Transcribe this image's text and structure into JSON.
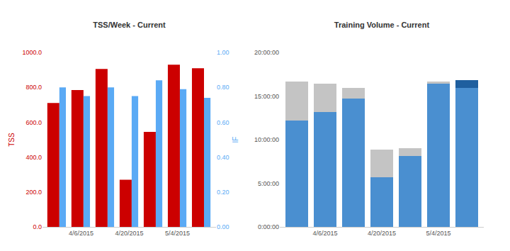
{
  "chart_data": [
    {
      "type": "bar",
      "title": "TSS/Week - Current",
      "categories": [
        null,
        "4/6/2015",
        null,
        "4/20/2015",
        null,
        "5/4/2015",
        null
      ],
      "ylabel": "TSS",
      "y2label": "IF",
      "series": [
        {
          "color": "#cc0000",
          "values": [
            710,
            785,
            905,
            270,
            545,
            930,
            910
          ]
        },
        {
          "color": "#5aaaf5",
          "axis": "y2",
          "values": [
            0.8,
            0.75,
            0.8,
            0.75,
            0.84,
            0.79,
            0.74
          ]
        }
      ],
      "ylim": [
        0,
        1000
      ],
      "yticks": [
        {
          "value": 0,
          "label": "0.0"
        },
        {
          "value": 200,
          "label": "200.0"
        },
        {
          "value": 400,
          "label": "400.0"
        },
        {
          "value": 600,
          "label": "600.0"
        },
        {
          "value": 800,
          "label": "800.0"
        },
        {
          "value": 1000,
          "label": "1000.0"
        }
      ],
      "y2lim": [
        0,
        1
      ],
      "y2ticks": [
        {
          "value": 0,
          "label": "0.00"
        },
        {
          "value": 0.2,
          "label": "0.20"
        },
        {
          "value": 0.4,
          "label": "0.40"
        },
        {
          "value": 0.6,
          "label": "0.60"
        },
        {
          "value": 0.8,
          "label": "0.80"
        },
        {
          "value": 1,
          "label": "1.00"
        }
      ],
      "grid": false
    },
    {
      "type": "bar",
      "title": "Training Volume - Current",
      "categories": [
        null,
        "4/6/2015",
        null,
        "4/20/2015",
        null,
        "5/4/2015",
        null
      ],
      "stacked": true,
      "series": [
        {
          "color": "#4a8fd0",
          "values": [
            12.2,
            13.2,
            14.7,
            5.7,
            8.1,
            16.4,
            15.9
          ]
        },
        {
          "color": "#c4c4c4",
          "values": [
            4.5,
            3.2,
            1.2,
            3.2,
            0.9,
            0.3,
            null
          ]
        },
        {
          "color": "#1f5f9f",
          "values": [
            null,
            null,
            null,
            null,
            null,
            null,
            0.9
          ]
        }
      ],
      "ylim": [
        0,
        20
      ],
      "yticks": [
        {
          "value": 0,
          "label": "0:00:00"
        },
        {
          "value": 5,
          "label": "5:00:00"
        },
        {
          "value": 10,
          "label": "10:00:00"
        },
        {
          "value": 15,
          "label": "15:00:00"
        },
        {
          "value": 20,
          "label": "20:00:00"
        }
      ],
      "grid": false
    }
  ]
}
